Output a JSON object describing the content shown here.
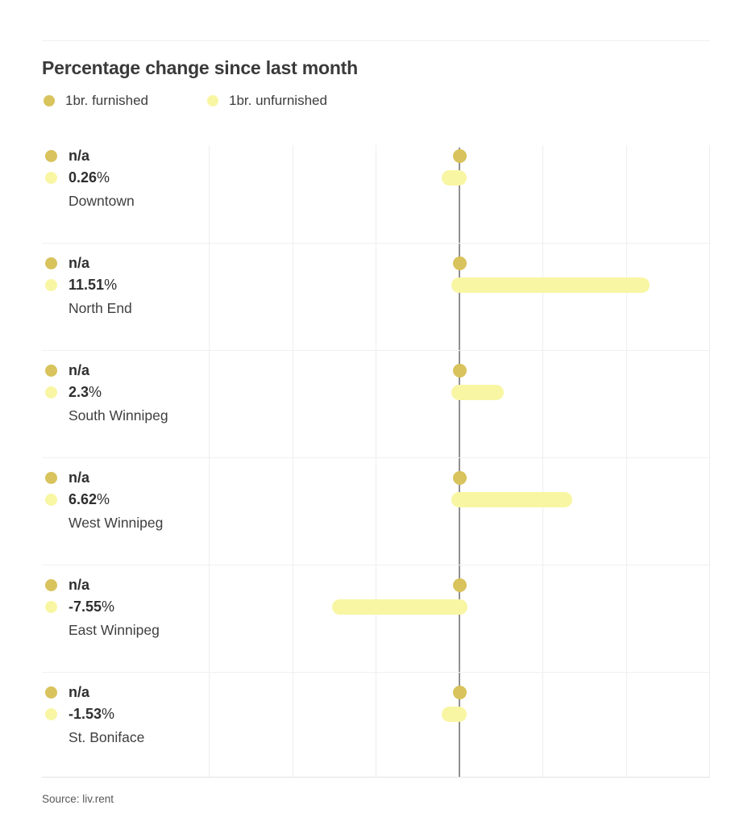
{
  "title": "Percentage change since last month",
  "legend": {
    "items": [
      {
        "label": "1br. furnished",
        "color": "#d8c35c"
      },
      {
        "label": "1br. unfurnished",
        "color": "#f8f6a3"
      }
    ]
  },
  "source": "Source: liv.rent",
  "colors": {
    "furnished": "#d8c35c",
    "unfurnished": "#f8f6a3",
    "zero_axis": "#909090",
    "gridline": "#eeeeee",
    "row_separator": "#f0f0f0",
    "title_text": "#3a3a3a",
    "body_text": "#3f3f3f"
  },
  "chart_data": {
    "type": "bar",
    "orientation": "horizontal",
    "title": "Percentage change since last month",
    "categories": [
      "Downtown",
      "North End",
      "South Winnipeg",
      "West Winnipeg",
      "East Winnipeg",
      "St. Boniface"
    ],
    "series": [
      {
        "name": "1br. furnished",
        "values": [
          null,
          null,
          null,
          null,
          null,
          null
        ],
        "display": [
          "n/a",
          "n/a",
          "n/a",
          "n/a",
          "n/a",
          "n/a"
        ]
      },
      {
        "name": "1br. unfurnished",
        "values": [
          0.26,
          11.51,
          2.3,
          6.62,
          -7.55,
          -1.53
        ],
        "display": [
          "0.26%",
          "11.51%",
          "2.3%",
          "6.62%",
          "-7.55%",
          "-1.53%"
        ]
      }
    ],
    "unit": "%",
    "axis": {
      "range": [
        -25,
        15
      ],
      "gridline_interval": 5,
      "gridline_values": [
        -15,
        -10,
        -5,
        5,
        10,
        15
      ],
      "zero_line": true
    },
    "legend_position": "top",
    "grid": "vertical-only"
  }
}
